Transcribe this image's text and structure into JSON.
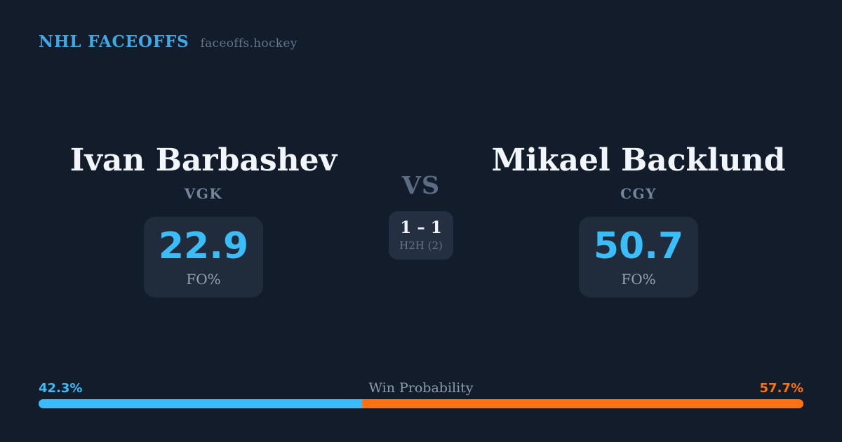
{
  "header": {
    "brand": "NHL FACEOFFS",
    "tagline": "faceoffs.hockey"
  },
  "matchup": {
    "vs_label": "VS",
    "h2h": {
      "record": "1 – 1",
      "label": "H2H (2)"
    },
    "players": [
      {
        "name": "Ivan Barbashev",
        "team": "VGK",
        "fo_value": "22.9",
        "fo_label": "FO%"
      },
      {
        "name": "Mikael Backlund",
        "team": "CGY",
        "fo_value": "50.7",
        "fo_label": "FO%"
      }
    ]
  },
  "win_probability": {
    "title": "Win Probability",
    "left_pct_label": "42.3%",
    "right_pct_label": "57.7%",
    "left_value": 42.3,
    "right_value": 57.7,
    "left_color": "#3cbbf7",
    "right_color": "#f97316"
  },
  "colors": {
    "background": "#131c2b",
    "card": "#202b3c",
    "h2h_box": "#243042",
    "brand_blue": "#3fa9e8",
    "stat_blue": "#3bbdf8",
    "orange": "#f97316",
    "name_white": "#f2f5f9",
    "muted_gray": "#64748b"
  }
}
